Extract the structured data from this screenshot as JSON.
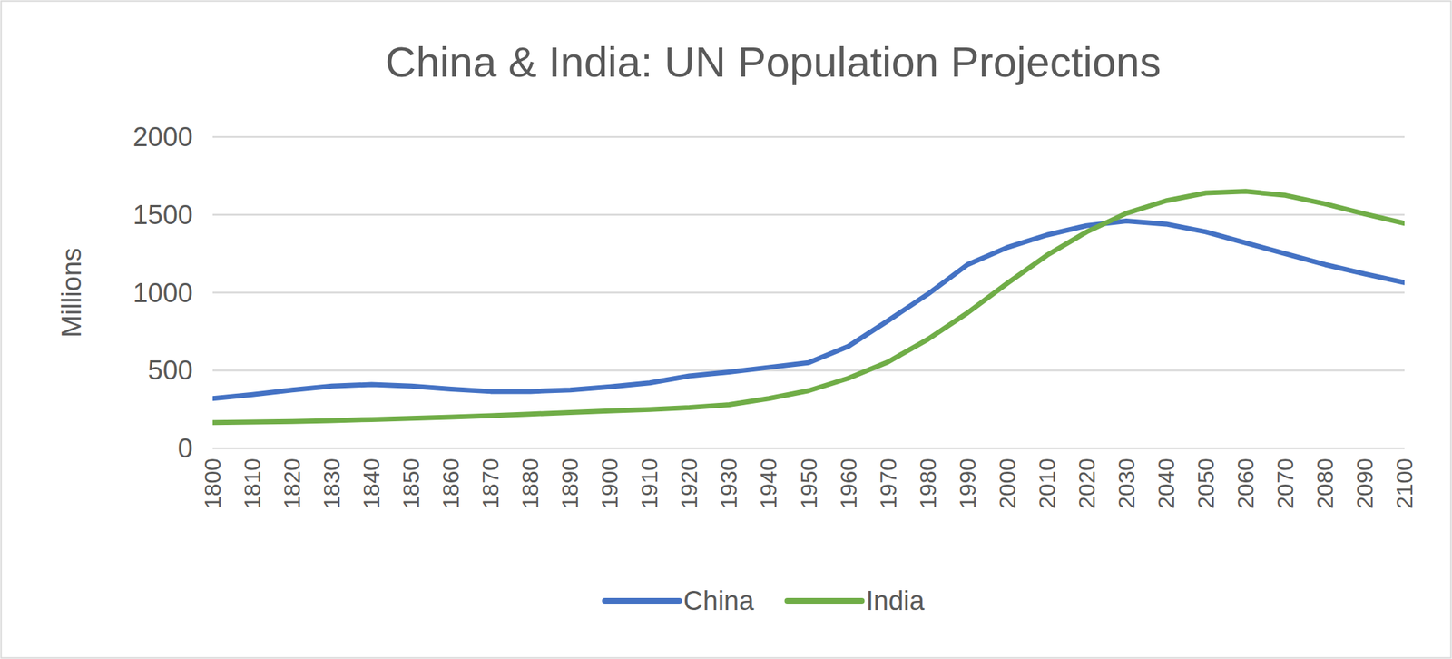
{
  "chart_data": {
    "type": "line",
    "title": "China & India: UN Population Projections",
    "y_label": "Millions",
    "x": [
      1800,
      1810,
      1820,
      1830,
      1840,
      1850,
      1860,
      1870,
      1880,
      1890,
      1900,
      1910,
      1920,
      1930,
      1940,
      1950,
      1960,
      1970,
      1980,
      1990,
      2000,
      2010,
      2020,
      2030,
      2040,
      2050,
      2060,
      2070,
      2080,
      2090,
      2100
    ],
    "xlim": [
      1800,
      2100
    ],
    "xticks": [
      1800,
      1810,
      1820,
      1830,
      1840,
      1850,
      1860,
      1870,
      1880,
      1890,
      1900,
      1910,
      1920,
      1930,
      1940,
      1950,
      1960,
      1970,
      1980,
      1990,
      2000,
      2010,
      2020,
      2030,
      2040,
      2050,
      2060,
      2070,
      2080,
      2090,
      2100
    ],
    "ylim": [
      0,
      2000
    ],
    "yticks": [
      0,
      500,
      1000,
      1500,
      2000
    ],
    "grid": true,
    "legend": "bottom",
    "series": [
      {
        "name": "China",
        "color": "#4472c4",
        "values": [
          320,
          345,
          375,
          400,
          410,
          400,
          380,
          365,
          365,
          375,
          395,
          420,
          465,
          490,
          520,
          550,
          655,
          820,
          990,
          1180,
          1290,
          1370,
          1430,
          1460,
          1440,
          1390,
          1320,
          1250,
          1180,
          1120,
          1065
        ]
      },
      {
        "name": "India",
        "color": "#70ad47",
        "values": [
          165,
          168,
          172,
          178,
          185,
          192,
          200,
          210,
          220,
          230,
          240,
          250,
          262,
          280,
          320,
          370,
          450,
          555,
          700,
          870,
          1060,
          1240,
          1390,
          1510,
          1590,
          1640,
          1650,
          1625,
          1570,
          1505,
          1445
        ]
      }
    ]
  }
}
